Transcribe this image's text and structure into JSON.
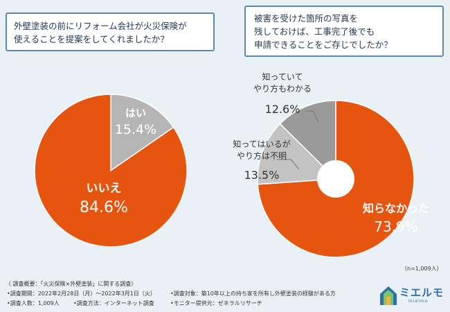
{
  "questions": [
    {
      "lines": [
        "外壁塗装の前にリフォーム会社が火災保険が",
        "使えることを提案をしてくれましたか？"
      ]
    },
    {
      "lines": [
        "被害を受けた箇所の写真を",
        "残しておけば、工事完了後でも",
        "申請できることをご存じでしたか？"
      ]
    }
  ],
  "chart_data": [
    {
      "type": "pie",
      "title": "外壁塗装の前にリフォーム会社が火災保険が使えることを提案をしてくれましたか？",
      "slices": [
        {
          "label": "はい",
          "value": 15.4,
          "value_text": "15.4%",
          "color": "#b5b5b5"
        },
        {
          "label": "いいえ",
          "value": 84.6,
          "value_text": "84.6%",
          "color": "#e65510"
        }
      ]
    },
    {
      "type": "pie",
      "title": "被害を受けた箇所の写真を残しておけば、工事完了後でも申請できることをご存じでしたか？",
      "donut": true,
      "slices": [
        {
          "label": "知らなかった",
          "value": 73.9,
          "value_text": "73.9%",
          "color": "#e65510"
        },
        {
          "label": "知ってはいるがやり方は不明",
          "value": 13.5,
          "value_text": "13.5%",
          "color": "#c3c3c3"
        },
        {
          "label": "知っていてやり方もわかる",
          "value": 12.6,
          "value_text": "12.6%",
          "color": "#9a9a9a"
        }
      ],
      "sample_size": "（n=1,009人）"
    }
  ],
  "footer": {
    "summary": "〈 調査概要：「火災保険×外壁塗装」に関する調査〉",
    "period": "•調査期間：2022年2月28日（月）～2022年3月1日（火）",
    "respondents": "•調査人数：1,009人",
    "method": "•調査方法：インターネット調査",
    "target": "•調査対象：築10年以上の持ち家を所有し外壁塗装の経験がある方",
    "panel": "•モニター提供元：ゼネラルリサーチ"
  },
  "logo": {
    "name": "ミエルモ",
    "sub": "mielmo"
  },
  "colors": {
    "orange": "#e65510",
    "border": "#5b87b5",
    "background": "#e9f1f7"
  }
}
